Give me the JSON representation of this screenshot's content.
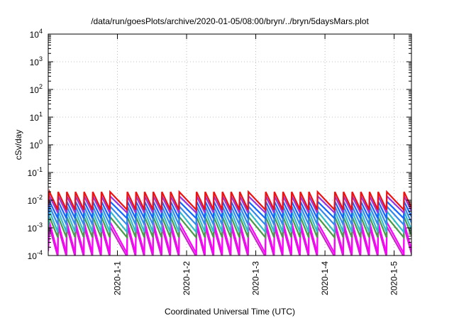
{
  "chart_data": {
    "type": "line",
    "title": "/data/run/goesPlots/archive/2020-01-05/08:00/bryn/../bryn/5daysMars.plot",
    "xlabel": "Coordinated Universal Time (UTC)",
    "ylabel": "cSv/day",
    "x_range": [
      "2019-12-31T00:00",
      "2020-01-05T06:00"
    ],
    "x_ticks": [
      "2020-1-1",
      "2020-1-2",
      "2020-1-3",
      "2020-1-4",
      "2020-1-5"
    ],
    "y_scale": "log",
    "ylim": [
      0.0001,
      10000
    ],
    "y_ticks": [
      {
        "base": "10",
        "exp": "-4"
      },
      {
        "base": "10",
        "exp": "-3"
      },
      {
        "base": "10",
        "exp": "-2"
      },
      {
        "base": "10",
        "exp": "-1"
      },
      {
        "base": "10",
        "exp": "0"
      },
      {
        "base": "10",
        "exp": "1"
      },
      {
        "base": "10",
        "exp": "2"
      },
      {
        "base": "10",
        "exp": "3"
      },
      {
        "base": "10",
        "exp": "4"
      }
    ],
    "grid": true,
    "sawtooth": {
      "period_hours": 3,
      "cycles": 42,
      "skip_cycles": [
        8,
        16,
        24,
        32,
        40
      ]
    },
    "series": [
      {
        "color": "#ee1111",
        "peak": 0.02,
        "trough": 0.0045
      },
      {
        "color": "#9933dd",
        "peak": 0.014,
        "trough": 0.0035
      },
      {
        "color": "#1166ff",
        "peak": 0.009,
        "trough": 0.0022
      },
      {
        "color": "#3388ee",
        "peak": 0.006,
        "trough": 0.0013
      },
      {
        "color": "#33bbcc",
        "peak": 0.004,
        "trough": 0.0007
      },
      {
        "color": "#4a9a4a",
        "peak": 0.0025,
        "trough": 0.00045
      },
      {
        "color": "#ff00ff",
        "peak": 0.0016,
        "trough": 0.00012
      },
      {
        "color": "#cc22cc",
        "peak": 0.0011,
        "trough": 9e-05
      }
    ]
  }
}
